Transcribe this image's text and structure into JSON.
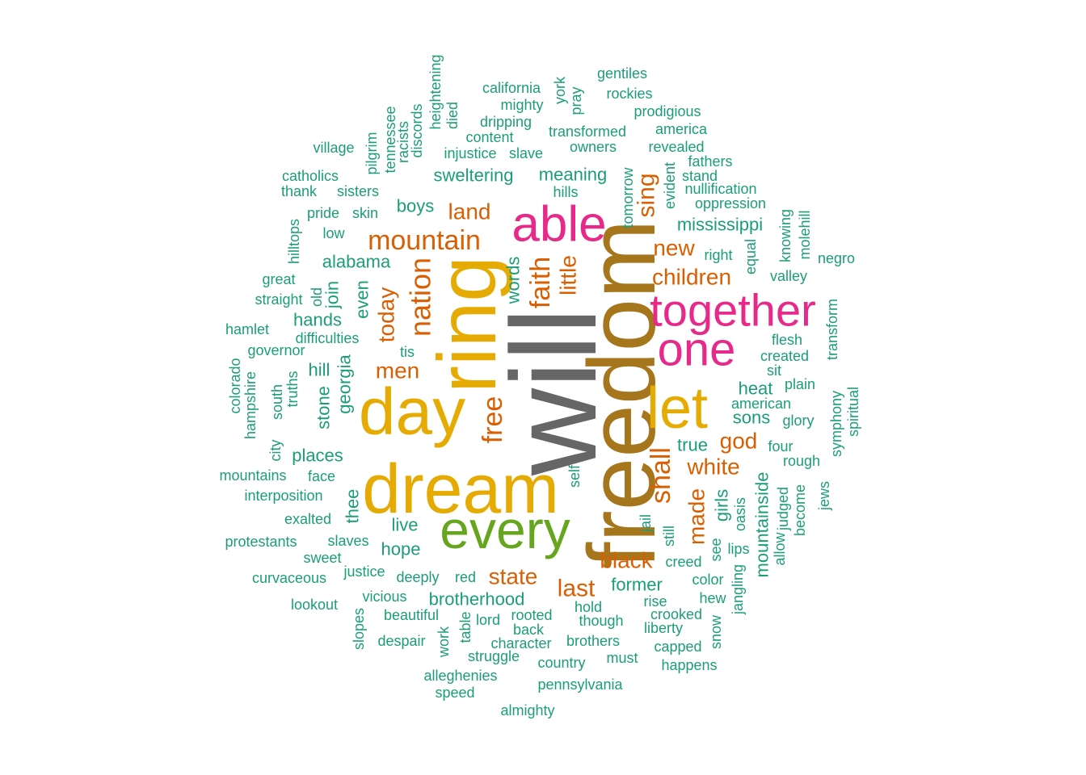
{
  "palette": {
    "teal": "#1B9E77",
    "orange": "#D95F02",
    "magenta": "#E7298A",
    "green": "#66A61E",
    "gold": "#E6AB02",
    "brown": "#A6761D",
    "gray": "#666666"
  },
  "words": [
    {
      "text": "will",
      "color": "gray",
      "rotated": true
    },
    {
      "text": "freedom",
      "color": "brown",
      "rotated": true
    },
    {
      "text": "ring",
      "color": "gold",
      "rotated": true
    },
    {
      "text": "dream",
      "color": "gold",
      "rotated": false
    },
    {
      "text": "day",
      "color": "gold",
      "rotated": false
    },
    {
      "text": "let",
      "color": "gold",
      "rotated": false
    },
    {
      "text": "every",
      "color": "green",
      "rotated": false
    },
    {
      "text": "able",
      "color": "magenta",
      "rotated": false
    },
    {
      "text": "together",
      "color": "magenta",
      "rotated": false
    },
    {
      "text": "one",
      "color": "magenta",
      "rotated": false
    },
    {
      "text": "mountain",
      "color": "orange",
      "rotated": false
    },
    {
      "text": "nation",
      "color": "orange",
      "rotated": true
    },
    {
      "text": "faith",
      "color": "orange",
      "rotated": true
    },
    {
      "text": "free",
      "color": "orange",
      "rotated": true
    },
    {
      "text": "shall",
      "color": "orange",
      "rotated": true
    },
    {
      "text": "today",
      "color": "orange",
      "rotated": true
    },
    {
      "text": "little",
      "color": "orange",
      "rotated": true
    },
    {
      "text": "sing",
      "color": "orange",
      "rotated": true
    },
    {
      "text": "made",
      "color": "orange",
      "rotated": true
    },
    {
      "text": "land",
      "color": "orange",
      "rotated": false
    },
    {
      "text": "new",
      "color": "orange",
      "rotated": false
    },
    {
      "text": "children",
      "color": "orange",
      "rotated": false
    },
    {
      "text": "men",
      "color": "orange",
      "rotated": false
    },
    {
      "text": "god",
      "color": "orange",
      "rotated": false
    },
    {
      "text": "white",
      "color": "orange",
      "rotated": false
    },
    {
      "text": "black",
      "color": "orange",
      "rotated": false
    },
    {
      "text": "state",
      "color": "orange",
      "rotated": false
    },
    {
      "text": "last",
      "color": "orange",
      "rotated": false
    },
    {
      "text": "alabama",
      "color": "teal",
      "rotated": false
    },
    {
      "text": "boys",
      "color": "teal",
      "rotated": false
    },
    {
      "text": "mississippi",
      "color": "teal",
      "rotated": false
    },
    {
      "text": "sweltering",
      "color": "teal",
      "rotated": false
    },
    {
      "text": "meaning",
      "color": "teal",
      "rotated": false
    },
    {
      "text": "hands",
      "color": "teal",
      "rotated": false
    },
    {
      "text": "hill",
      "color": "teal",
      "rotated": false
    },
    {
      "text": "heat",
      "color": "teal",
      "rotated": false
    },
    {
      "text": "sons",
      "color": "teal",
      "rotated": false
    },
    {
      "text": "true",
      "color": "teal",
      "rotated": false
    },
    {
      "text": "places",
      "color": "teal",
      "rotated": false
    },
    {
      "text": "live",
      "color": "teal",
      "rotated": false
    },
    {
      "text": "hope",
      "color": "teal",
      "rotated": false
    },
    {
      "text": "brotherhood",
      "color": "teal",
      "rotated": false
    },
    {
      "text": "former",
      "color": "teal",
      "rotated": false
    },
    {
      "text": "words",
      "color": "teal",
      "rotated": true
    },
    {
      "text": "even",
      "color": "teal",
      "rotated": true
    },
    {
      "text": "join",
      "color": "teal",
      "rotated": true
    },
    {
      "text": "georgia",
      "color": "teal",
      "rotated": true
    },
    {
      "text": "stone",
      "color": "teal",
      "rotated": true
    },
    {
      "text": "thee",
      "color": "teal",
      "rotated": true
    },
    {
      "text": "mountainside",
      "color": "teal",
      "rotated": true
    },
    {
      "text": "girls",
      "color": "teal",
      "rotated": true
    },
    {
      "text": "california",
      "color": "teal",
      "rotated": false
    },
    {
      "text": "mighty",
      "color": "teal",
      "rotated": false
    },
    {
      "text": "dripping",
      "color": "teal",
      "rotated": false
    },
    {
      "text": "content",
      "color": "teal",
      "rotated": false
    },
    {
      "text": "injustice",
      "color": "teal",
      "rotated": false
    },
    {
      "text": "slave",
      "color": "teal",
      "rotated": false
    },
    {
      "text": "transformed",
      "color": "teal",
      "rotated": false
    },
    {
      "text": "owners",
      "color": "teal",
      "rotated": false
    },
    {
      "text": "gentiles",
      "color": "teal",
      "rotated": false
    },
    {
      "text": "rockies",
      "color": "teal",
      "rotated": false
    },
    {
      "text": "prodigious",
      "color": "teal",
      "rotated": false
    },
    {
      "text": "america",
      "color": "teal",
      "rotated": false
    },
    {
      "text": "revealed",
      "color": "teal",
      "rotated": false
    },
    {
      "text": "fathers",
      "color": "teal",
      "rotated": false
    },
    {
      "text": "stand",
      "color": "teal",
      "rotated": false
    },
    {
      "text": "nullification",
      "color": "teal",
      "rotated": false
    },
    {
      "text": "oppression",
      "color": "teal",
      "rotated": false
    },
    {
      "text": "hills",
      "color": "teal",
      "rotated": false
    },
    {
      "text": "village",
      "color": "teal",
      "rotated": false
    },
    {
      "text": "catholics",
      "color": "teal",
      "rotated": false
    },
    {
      "text": "thank",
      "color": "teal",
      "rotated": false
    },
    {
      "text": "sisters",
      "color": "teal",
      "rotated": false
    },
    {
      "text": "pride",
      "color": "teal",
      "rotated": false
    },
    {
      "text": "skin",
      "color": "teal",
      "rotated": false
    },
    {
      "text": "low",
      "color": "teal",
      "rotated": false
    },
    {
      "text": "great",
      "color": "teal",
      "rotated": false
    },
    {
      "text": "straight",
      "color": "teal",
      "rotated": false
    },
    {
      "text": "hamlet",
      "color": "teal",
      "rotated": false
    },
    {
      "text": "difficulties",
      "color": "teal",
      "rotated": false
    },
    {
      "text": "governor",
      "color": "teal",
      "rotated": false
    },
    {
      "text": "tis",
      "color": "teal",
      "rotated": false
    },
    {
      "text": "right",
      "color": "teal",
      "rotated": false
    },
    {
      "text": "valley",
      "color": "teal",
      "rotated": false
    },
    {
      "text": "negro",
      "color": "teal",
      "rotated": false
    },
    {
      "text": "flesh",
      "color": "teal",
      "rotated": false
    },
    {
      "text": "created",
      "color": "teal",
      "rotated": false
    },
    {
      "text": "sit",
      "color": "teal",
      "rotated": false
    },
    {
      "text": "plain",
      "color": "teal",
      "rotated": false
    },
    {
      "text": "american",
      "color": "teal",
      "rotated": false
    },
    {
      "text": "glory",
      "color": "teal",
      "rotated": false
    },
    {
      "text": "four",
      "color": "teal",
      "rotated": false
    },
    {
      "text": "rough",
      "color": "teal",
      "rotated": false
    },
    {
      "text": "mountains",
      "color": "teal",
      "rotated": false
    },
    {
      "text": "face",
      "color": "teal",
      "rotated": false
    },
    {
      "text": "interposition",
      "color": "teal",
      "rotated": false
    },
    {
      "text": "exalted",
      "color": "teal",
      "rotated": false
    },
    {
      "text": "protestants",
      "color": "teal",
      "rotated": false
    },
    {
      "text": "slaves",
      "color": "teal",
      "rotated": false
    },
    {
      "text": "sweet",
      "color": "teal",
      "rotated": false
    },
    {
      "text": "curvaceous",
      "color": "teal",
      "rotated": false
    },
    {
      "text": "justice",
      "color": "teal",
      "rotated": false
    },
    {
      "text": "deeply",
      "color": "teal",
      "rotated": false
    },
    {
      "text": "red",
      "color": "teal",
      "rotated": false
    },
    {
      "text": "lookout",
      "color": "teal",
      "rotated": false
    },
    {
      "text": "vicious",
      "color": "teal",
      "rotated": false
    },
    {
      "text": "beautiful",
      "color": "teal",
      "rotated": false
    },
    {
      "text": "lord",
      "color": "teal",
      "rotated": false
    },
    {
      "text": "rooted",
      "color": "teal",
      "rotated": false
    },
    {
      "text": "back",
      "color": "teal",
      "rotated": false
    },
    {
      "text": "character",
      "color": "teal",
      "rotated": false
    },
    {
      "text": "despair",
      "color": "teal",
      "rotated": false
    },
    {
      "text": "struggle",
      "color": "teal",
      "rotated": false
    },
    {
      "text": "brothers",
      "color": "teal",
      "rotated": false
    },
    {
      "text": "country",
      "color": "teal",
      "rotated": false
    },
    {
      "text": "must",
      "color": "teal",
      "rotated": false
    },
    {
      "text": "alleghenies",
      "color": "teal",
      "rotated": false
    },
    {
      "text": "speed",
      "color": "teal",
      "rotated": false
    },
    {
      "text": "pennsylvania",
      "color": "teal",
      "rotated": false
    },
    {
      "text": "almighty",
      "color": "teal",
      "rotated": false
    },
    {
      "text": "hold",
      "color": "teal",
      "rotated": false
    },
    {
      "text": "though",
      "color": "teal",
      "rotated": false
    },
    {
      "text": "rise",
      "color": "teal",
      "rotated": false
    },
    {
      "text": "crooked",
      "color": "teal",
      "rotated": false
    },
    {
      "text": "liberty",
      "color": "teal",
      "rotated": false
    },
    {
      "text": "capped",
      "color": "teal",
      "rotated": false
    },
    {
      "text": "happens",
      "color": "teal",
      "rotated": false
    },
    {
      "text": "creed",
      "color": "teal",
      "rotated": false
    },
    {
      "text": "color",
      "color": "teal",
      "rotated": false
    },
    {
      "text": "hew",
      "color": "teal",
      "rotated": false
    },
    {
      "text": "lips",
      "color": "teal",
      "rotated": false
    },
    {
      "text": "heightening",
      "color": "teal",
      "rotated": true
    },
    {
      "text": "died",
      "color": "teal",
      "rotated": true
    },
    {
      "text": "discords",
      "color": "teal",
      "rotated": true
    },
    {
      "text": "racists",
      "color": "teal",
      "rotated": true
    },
    {
      "text": "tennessee",
      "color": "teal",
      "rotated": true
    },
    {
      "text": "pilgrim",
      "color": "teal",
      "rotated": true
    },
    {
      "text": "york",
      "color": "teal",
      "rotated": true
    },
    {
      "text": "pray",
      "color": "teal",
      "rotated": true
    },
    {
      "text": "tomorrow",
      "color": "teal",
      "rotated": true
    },
    {
      "text": "evident",
      "color": "teal",
      "rotated": true
    },
    {
      "text": "hilltops",
      "color": "teal",
      "rotated": true
    },
    {
      "text": "old",
      "color": "teal",
      "rotated": true
    },
    {
      "text": "equal",
      "color": "teal",
      "rotated": true
    },
    {
      "text": "knowing",
      "color": "teal",
      "rotated": true
    },
    {
      "text": "molehill",
      "color": "teal",
      "rotated": true
    },
    {
      "text": "transform",
      "color": "teal",
      "rotated": true
    },
    {
      "text": "colorado",
      "color": "teal",
      "rotated": true
    },
    {
      "text": "hampshire",
      "color": "teal",
      "rotated": true
    },
    {
      "text": "south",
      "color": "teal",
      "rotated": true
    },
    {
      "text": "truths",
      "color": "teal",
      "rotated": true
    },
    {
      "text": "city",
      "color": "teal",
      "rotated": true
    },
    {
      "text": "symphony",
      "color": "teal",
      "rotated": true
    },
    {
      "text": "spiritual",
      "color": "teal",
      "rotated": true
    },
    {
      "text": "self",
      "color": "teal",
      "rotated": true
    },
    {
      "text": "jail",
      "color": "teal",
      "rotated": true
    },
    {
      "text": "still",
      "color": "teal",
      "rotated": true
    },
    {
      "text": "see",
      "color": "teal",
      "rotated": true
    },
    {
      "text": "oasis",
      "color": "teal",
      "rotated": true
    },
    {
      "text": "allow",
      "color": "teal",
      "rotated": true
    },
    {
      "text": "judged",
      "color": "teal",
      "rotated": true
    },
    {
      "text": "become",
      "color": "teal",
      "rotated": true
    },
    {
      "text": "jews",
      "color": "teal",
      "rotated": true
    },
    {
      "text": "jangling",
      "color": "teal",
      "rotated": true
    },
    {
      "text": "snow",
      "color": "teal",
      "rotated": true
    },
    {
      "text": "slopes",
      "color": "teal",
      "rotated": true
    },
    {
      "text": "work",
      "color": "teal",
      "rotated": true
    },
    {
      "text": "table",
      "color": "teal",
      "rotated": true
    }
  ]
}
